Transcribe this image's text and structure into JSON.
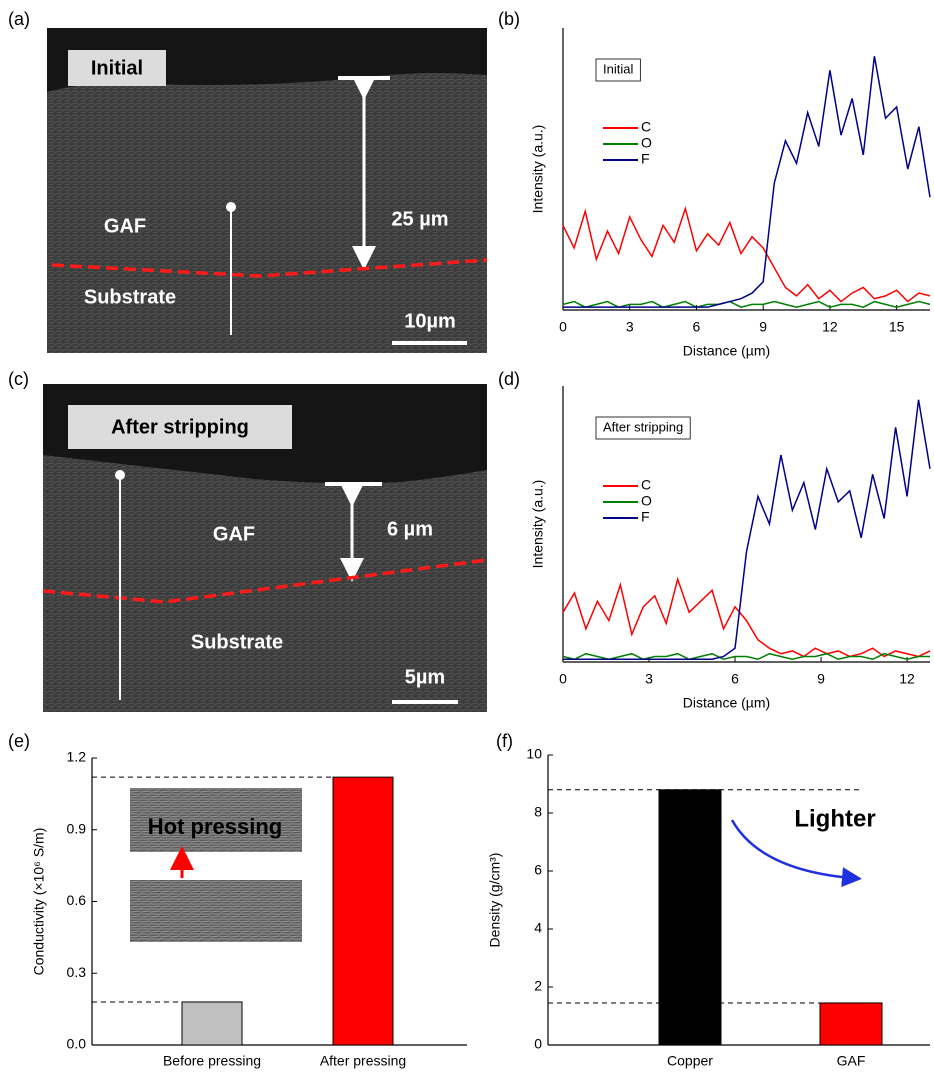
{
  "images": [
    {
      "panel_label": "(a)",
      "tag": "Initial",
      "layer": "GAF",
      "substrate": "Substrate",
      "thickness": "25 µm",
      "scale_bar": "10µm"
    },
    {
      "panel_label": "(c)",
      "tag": "After stripping",
      "layer": "GAF",
      "substrate": "Substrate",
      "thickness": "6 µm",
      "scale_bar": "5µm"
    }
  ],
  "chart_data": [
    {
      "type": "line",
      "panel_label": "(b)",
      "annotation": "Initial",
      "x_label": "Distance (µm)",
      "y_label": "Intensity (a.u.)",
      "x": [
        0,
        0.5,
        1,
        1.5,
        2,
        2.5,
        3,
        3.5,
        4,
        4.5,
        5,
        5.5,
        6,
        6.5,
        7,
        7.5,
        8,
        8.5,
        9,
        9.5,
        10,
        10.5,
        11,
        11.5,
        12,
        12.5,
        13,
        13.5,
        14,
        14.5,
        15,
        15.5,
        16,
        16.5
      ],
      "series": [
        {
          "name": "C",
          "color": "#ff0000",
          "values": [
            30,
            22,
            35,
            18,
            28,
            20,
            33,
            25,
            19,
            30,
            24,
            36,
            21,
            27,
            23,
            31,
            20,
            26,
            22,
            15,
            8,
            5,
            9,
            4,
            7,
            3,
            6,
            8,
            4,
            5,
            7,
            3,
            6,
            5
          ]
        },
        {
          "name": "O",
          "color": "#008000",
          "values": [
            2,
            3,
            1,
            2,
            3,
            1,
            2,
            2,
            3,
            1,
            2,
            3,
            1,
            2,
            2,
            3,
            1,
            2,
            2,
            3,
            2,
            1,
            2,
            3,
            1,
            2,
            2,
            1,
            3,
            2,
            1,
            2,
            3,
            2
          ]
        },
        {
          "name": "F",
          "color": "#00008b",
          "values": [
            1,
            1,
            1,
            1,
            1,
            1,
            1,
            1,
            1,
            1,
            1,
            1,
            1,
            1,
            2,
            3,
            4,
            6,
            10,
            45,
            60,
            52,
            70,
            58,
            85,
            62,
            75,
            55,
            90,
            68,
            72,
            50,
            65,
            40
          ]
        }
      ],
      "xlim": [
        0,
        16.5
      ],
      "xticks": [
        0,
        3,
        6,
        9,
        12,
        15
      ],
      "ylim": [
        0,
        100
      ]
    },
    {
      "type": "line",
      "panel_label": "(d)",
      "annotation": "After stripping",
      "x_label": "Distance (µm)",
      "y_label": "Intensity (a.u.)",
      "x": [
        0,
        0.4,
        0.8,
        1.2,
        1.6,
        2,
        2.4,
        2.8,
        3.2,
        3.6,
        4,
        4.4,
        4.8,
        5.2,
        5.6,
        6,
        6.4,
        6.8,
        7.2,
        7.6,
        8,
        8.4,
        8.8,
        9.2,
        9.6,
        10,
        10.4,
        10.8,
        11.2,
        11.6,
        12,
        12.4,
        12.8
      ],
      "series": [
        {
          "name": "C",
          "color": "#ff0000",
          "values": [
            18,
            25,
            12,
            22,
            15,
            28,
            10,
            20,
            24,
            14,
            30,
            18,
            22,
            26,
            12,
            20,
            15,
            8,
            5,
            3,
            4,
            2,
            5,
            3,
            4,
            2,
            3,
            5,
            2,
            4,
            3,
            2,
            4
          ]
        },
        {
          "name": "O",
          "color": "#008000",
          "values": [
            2,
            1,
            3,
            2,
            1,
            2,
            3,
            1,
            2,
            2,
            3,
            1,
            2,
            3,
            1,
            2,
            2,
            1,
            3,
            2,
            1,
            2,
            2,
            3,
            1,
            2,
            2,
            1,
            3,
            2,
            1,
            2,
            2
          ]
        },
        {
          "name": "F",
          "color": "#00008b",
          "values": [
            1,
            1,
            1,
            1,
            1,
            1,
            1,
            1,
            1,
            1,
            1,
            1,
            1,
            1,
            2,
            5,
            40,
            60,
            50,
            75,
            55,
            65,
            48,
            70,
            58,
            62,
            45,
            68,
            52,
            85,
            60,
            95,
            70
          ]
        }
      ],
      "xlim": [
        0,
        12.8
      ],
      "xticks": [
        0,
        3,
        6,
        9,
        12
      ],
      "ylim": [
        0,
        100
      ]
    },
    {
      "type": "bar",
      "panel_label": "(e)",
      "y_label": "Conductivity (×10⁶ S/m)",
      "inset_text": "Hot pressing",
      "categories": [
        "Before pressing",
        "After pressing"
      ],
      "values": [
        0.18,
        1.12
      ],
      "colors": [
        "#c0c0c0",
        "#ff0000"
      ],
      "ylim": [
        0,
        1.2
      ],
      "yticks": [
        {
          "value": 0,
          "label": "0.0"
        },
        0.3,
        0.6,
        0.9,
        {
          "value": 1.2,
          "label": "1.2"
        }
      ]
    },
    {
      "type": "bar",
      "panel_label": "(f)",
      "y_label": "Density (g/cm³)",
      "annotation": "Lighter",
      "categories": [
        "Copper",
        "GAF"
      ],
      "values": [
        8.8,
        1.45
      ],
      "colors": [
        "#000000",
        "#ff0000"
      ],
      "ylim": [
        0,
        10
      ],
      "yticks": [
        0,
        2,
        4,
        6,
        8,
        10
      ]
    }
  ]
}
